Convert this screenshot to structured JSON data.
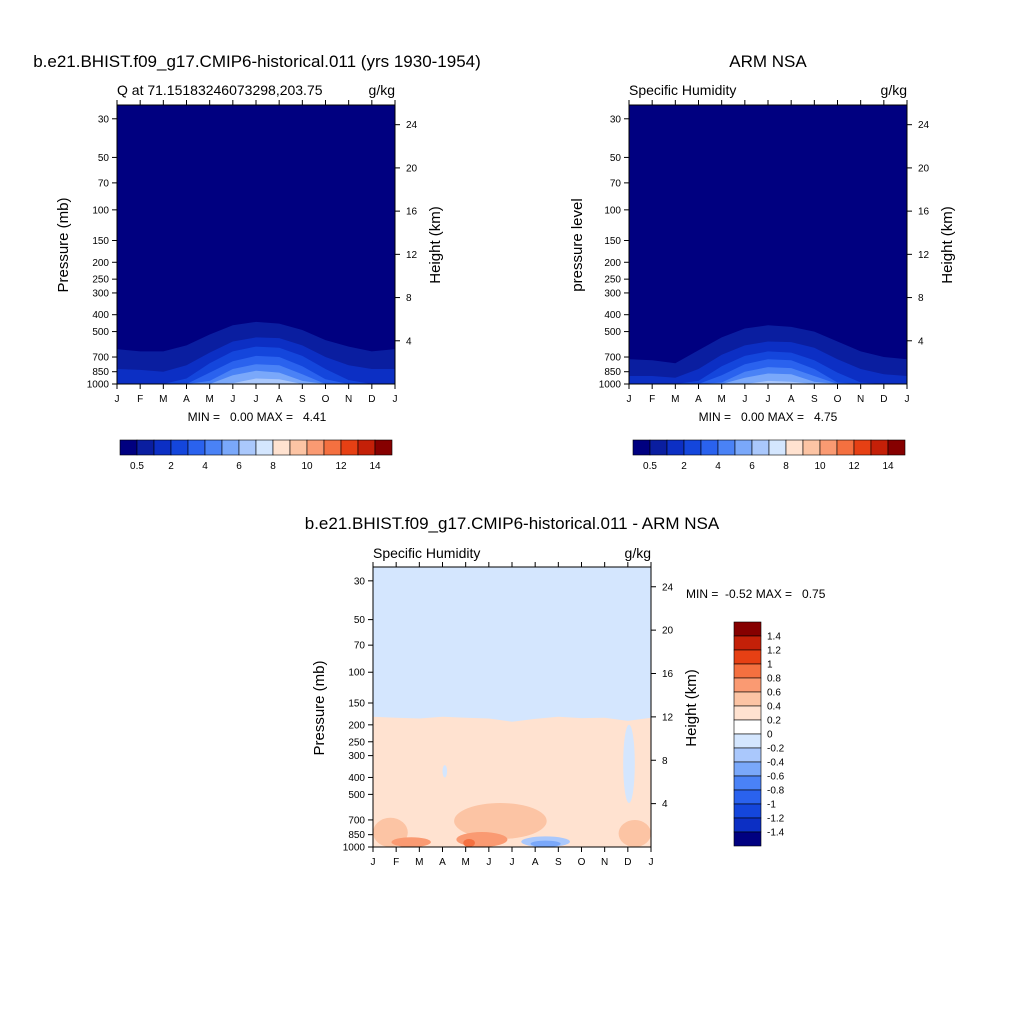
{
  "figure": {
    "colors": {
      "deep_navy": "#000080",
      "navy2": "#0a1ea0",
      "blue1": "#0c2fc4",
      "blue2": "#1446dc",
      "blue3": "#2a62ee",
      "blue4": "#4a82f6",
      "blue5": "#7aa8fa",
      "blue6": "#aac8fc",
      "blue7": "#d4e6fe",
      "peach1": "#ffe2d0",
      "peach2": "#fcc4a4",
      "orange1": "#fa9a72",
      "orange2": "#f47040",
      "red1": "#e64014",
      "red2": "#c42008",
      "dark_red": "#860000"
    }
  },
  "chart_data": [
    {
      "id": "model",
      "type": "heatmap",
      "title": "b.e21.BHIST.f09_g17.CMIP6-historical.011 (yrs 1930-1954)",
      "subtitle_left": "Q at 71.15183246073298,203.75",
      "subtitle_right": "g/kg",
      "xlabel": "",
      "ylabel": "Pressure (mb)",
      "ylabel_right": "Height (km)",
      "months": [
        "J",
        "F",
        "M",
        "A",
        "M",
        "J",
        "J",
        "A",
        "S",
        "O",
        "N",
        "D",
        "J"
      ],
      "pressure_ticks": [
        "30",
        "50",
        "70",
        "100",
        "150",
        "200",
        "250",
        "300",
        "400",
        "500",
        "700",
        "850",
        "1000"
      ],
      "height_ticks": [
        "24",
        "20",
        "16",
        "12",
        "8",
        "4"
      ],
      "ylim": [
        1000,
        25
      ],
      "min_max_label": "MIN =   0.00 MAX =   4.41",
      "min": 0.0,
      "max": 4.41,
      "colorbar_labels": [
        "0.5",
        "2",
        "4",
        "6",
        "8",
        "10",
        "12",
        "14"
      ],
      "contours": [
        {
          "level": 0.5,
          "pressure": [
            630,
            650,
            650,
            600,
            520,
            460,
            440,
            450,
            490,
            560,
            610,
            650,
            630
          ]
        },
        {
          "level": 1,
          "pressure": [
            820,
            830,
            850,
            780,
            660,
            570,
            540,
            545,
            600,
            700,
            780,
            820,
            820
          ]
        },
        {
          "level": 1.5,
          "pressure": [
            1000,
            1000,
            1000,
            930,
            760,
            650,
            610,
            620,
            690,
            820,
            950,
            1000,
            1000
          ]
        },
        {
          "level": 2,
          "pressure": [
            1000,
            1000,
            1000,
            1000,
            860,
            740,
            690,
            700,
            790,
            940,
            1000,
            1000,
            1000
          ]
        },
        {
          "level": 2.5,
          "pressure": [
            1000,
            1000,
            1000,
            1000,
            960,
            820,
            770,
            780,
            880,
            1000,
            1000,
            1000,
            1000
          ]
        },
        {
          "level": 3,
          "pressure": [
            1000,
            1000,
            1000,
            1000,
            1000,
            890,
            840,
            860,
            960,
            1000,
            1000,
            1000,
            1000
          ]
        },
        {
          "level": 4,
          "pressure": [
            1000,
            1000,
            1000,
            1000,
            1000,
            990,
            930,
            940,
            1000,
            1000,
            1000,
            1000,
            1000
          ]
        }
      ]
    },
    {
      "id": "obs",
      "type": "heatmap",
      "title": "ARM NSA",
      "subtitle_left": "Specific Humidity",
      "subtitle_right": "g/kg",
      "xlabel": "",
      "ylabel": "pressure level",
      "ylabel_right": "Height (km)",
      "months": [
        "J",
        "F",
        "M",
        "A",
        "M",
        "J",
        "J",
        "A",
        "S",
        "O",
        "N",
        "D",
        "J"
      ],
      "pressure_ticks": [
        "30",
        "50",
        "70",
        "100",
        "150",
        "200",
        "250",
        "300",
        "400",
        "500",
        "700",
        "850",
        "1000"
      ],
      "height_ticks": [
        "24",
        "20",
        "16",
        "12",
        "8",
        "4"
      ],
      "ylim": [
        1000,
        25
      ],
      "min_max_label": "MIN =   0.00 MAX =   4.75",
      "min": 0.0,
      "max": 4.75,
      "colorbar_labels": [
        "0.5",
        "2",
        "4",
        "6",
        "8",
        "10",
        "12",
        "14"
      ],
      "contours": [
        {
          "level": 0.5,
          "pressure": [
            720,
            730,
            760,
            640,
            540,
            480,
            460,
            470,
            500,
            570,
            650,
            700,
            720
          ]
        },
        {
          "level": 1,
          "pressure": [
            900,
            900,
            920,
            820,
            680,
            600,
            570,
            575,
            620,
            720,
            820,
            880,
            900
          ]
        },
        {
          "level": 1.5,
          "pressure": [
            1000,
            1000,
            1000,
            960,
            790,
            690,
            650,
            660,
            730,
            860,
            980,
            1000,
            1000
          ]
        },
        {
          "level": 2,
          "pressure": [
            1000,
            1000,
            1000,
            1000,
            890,
            770,
            720,
            730,
            820,
            980,
            1000,
            1000,
            1000
          ]
        },
        {
          "level": 2.5,
          "pressure": [
            1000,
            1000,
            1000,
            1000,
            980,
            850,
            800,
            810,
            900,
            1000,
            1000,
            1000,
            1000
          ]
        },
        {
          "level": 3,
          "pressure": [
            1000,
            1000,
            1000,
            1000,
            1000,
            920,
            870,
            880,
            970,
            1000,
            1000,
            1000,
            1000
          ]
        },
        {
          "level": 4,
          "pressure": [
            1000,
            1000,
            1000,
            1000,
            1000,
            1000,
            960,
            970,
            1000,
            1000,
            1000,
            1000,
            1000
          ]
        }
      ]
    },
    {
      "id": "diff",
      "type": "heatmap",
      "title": "b.e21.BHIST.f09_g17.CMIP6-historical.011 - ARM NSA",
      "subtitle_left": "Specific Humidity",
      "subtitle_right": "g/kg",
      "xlabel": "",
      "ylabel": "Pressure (mb)",
      "ylabel_right": "Height (km)",
      "months": [
        "J",
        "F",
        "M",
        "A",
        "M",
        "J",
        "J",
        "A",
        "S",
        "O",
        "N",
        "D",
        "J"
      ],
      "pressure_ticks": [
        "30",
        "50",
        "70",
        "100",
        "150",
        "200",
        "250",
        "300",
        "400",
        "500",
        "700",
        "850",
        "1000"
      ],
      "height_ticks": [
        "24",
        "20",
        "16",
        "12",
        "8",
        "4"
      ],
      "ylim": [
        1000,
        25
      ],
      "min_max_label": "MIN =  -0.52 MAX =   0.75",
      "min": -0.52,
      "max": 0.75,
      "colorbar_labels": [
        "1.4",
        "1.2",
        "1",
        "0.8",
        "0.6",
        "0.4",
        "0.2",
        "0",
        "-0.2",
        "-0.4",
        "-0.6",
        "-0.8",
        "-1",
        "-1.2",
        "-1.4"
      ],
      "features": [
        {
          "kind": "boundary_0.2_to_0",
          "pressure": [
            180,
            182,
            184,
            180,
            182,
            184,
            192,
            185,
            180,
            183,
            182,
            190,
            182
          ]
        },
        {
          "kind": "negative_patch",
          "value": -0.1,
          "month_range": [
            3.0,
            3.2
          ],
          "pressure_range": [
            340,
            400
          ]
        },
        {
          "kind": "negative_patch",
          "value": -0.1,
          "month_range": [
            10.8,
            11.3
          ],
          "pressure_range": [
            200,
            560
          ]
        },
        {
          "kind": "positive_patch",
          "value": 0.3,
          "month_range": [
            0,
            1.5
          ],
          "pressure_range": [
            680,
            1000
          ]
        },
        {
          "kind": "positive_patch",
          "value": 0.3,
          "month_range": [
            3.5,
            7.5
          ],
          "pressure_range": [
            560,
            900
          ]
        },
        {
          "kind": "positive_patch",
          "value": 0.5,
          "month_range": [
            0.8,
            2.5
          ],
          "pressure_range": [
            880,
            1000
          ]
        },
        {
          "kind": "positive_patch",
          "value": 0.5,
          "month_range": [
            3.6,
            5.8
          ],
          "pressure_range": [
            820,
            1000
          ]
        },
        {
          "kind": "positive_patch",
          "value": 0.7,
          "month_range": [
            3.9,
            4.4
          ],
          "pressure_range": [
            900,
            1000
          ]
        },
        {
          "kind": "negative_patch",
          "value": -0.3,
          "month_range": [
            6.4,
            8.5
          ],
          "pressure_range": [
            870,
            1000
          ]
        },
        {
          "kind": "negative_patch",
          "value": -0.5,
          "month_range": [
            6.8,
            8.1
          ],
          "pressure_range": [
            920,
            1000
          ]
        },
        {
          "kind": "positive_patch",
          "value": 0.3,
          "month_range": [
            10.6,
            12
          ],
          "pressure_range": [
            700,
            1000
          ]
        }
      ]
    }
  ]
}
